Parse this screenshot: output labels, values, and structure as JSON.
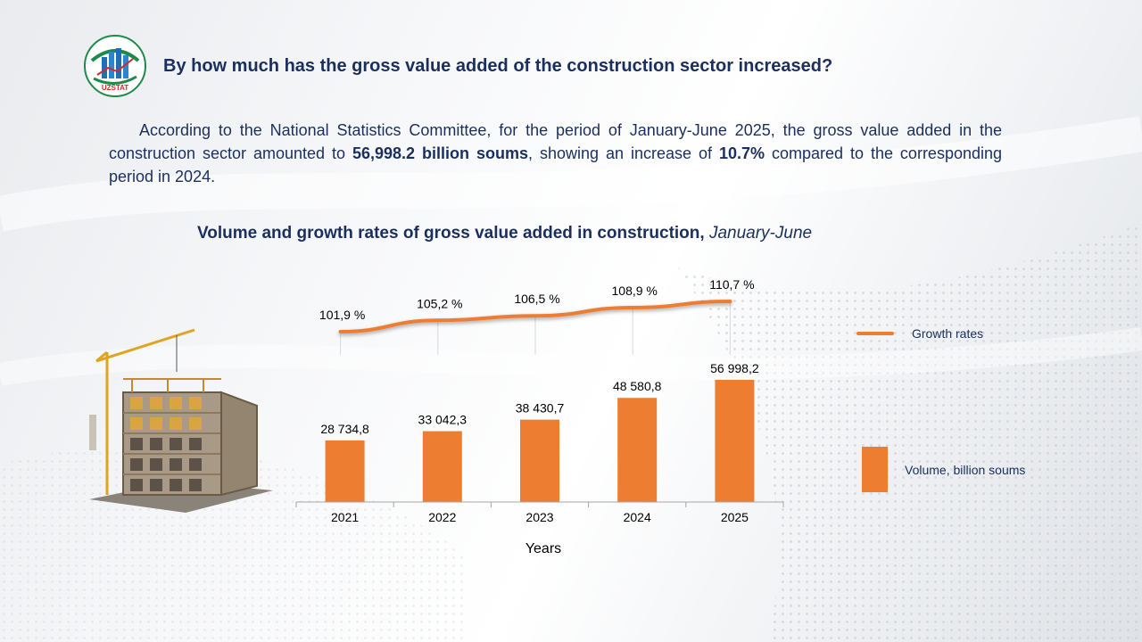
{
  "colors": {
    "accent": "#ed7d31",
    "text": "#1b2f5e",
    "axis": "#a6a6a6"
  },
  "header": {
    "logo_text": "UZSTAT",
    "title": "By how much has the gross value added of the construction sector increased?"
  },
  "intro": {
    "part1": "According to the National Statistics Committee, for the period of January-June 2025, the gross value added in the construction sector amounted to ",
    "highlight1": "56,998.2 billion soums",
    "part2": ", showing an increase of ",
    "highlight2": "10.7%",
    "part3": " compared to the corresponding period in 2024."
  },
  "chart_title": {
    "main": "Volume and growth rates of gross value added in construction, ",
    "period": "January-June"
  },
  "chart_data": {
    "type": "bar",
    "categories": [
      "2021",
      "2022",
      "2023",
      "2024",
      "2025"
    ],
    "series": [
      {
        "name": "Volume, billion soums",
        "type": "bar",
        "values": [
          28734.8,
          33042.3,
          38430.7,
          48580.8,
          56998.2
        ],
        "labels": [
          "28 734,8",
          "33 042,3",
          "38 430,7",
          "48 580,8",
          "56 998,2"
        ]
      },
      {
        "name": "Growth rates",
        "type": "line",
        "values": [
          101.9,
          105.2,
          106.5,
          108.9,
          110.7
        ],
        "labels": [
          "101,9 %",
          "105,2 %",
          "106,5 %",
          "108,9 %",
          "110,7 %"
        ]
      }
    ],
    "xlabel": "Years",
    "ylabel": "",
    "legend": "right"
  }
}
